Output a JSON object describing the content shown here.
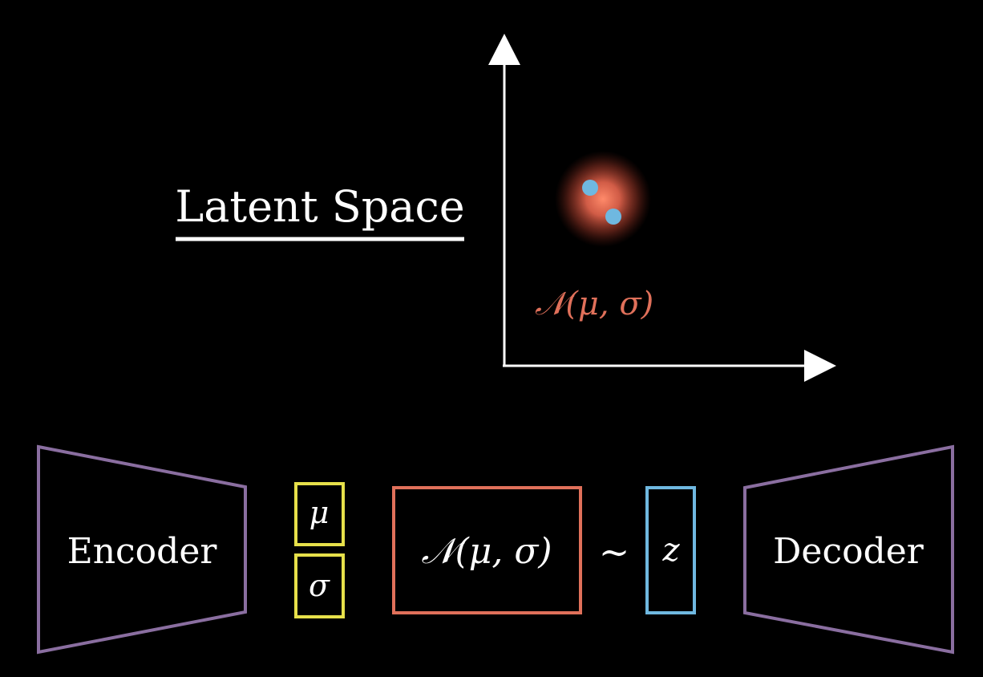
{
  "latent_space": {
    "title": "Latent Space",
    "distribution_label": "𝒩(μ, σ)",
    "colors": {
      "axes": "#ffffff",
      "distribution": "#e0705a",
      "points": "#6fb8e0"
    }
  },
  "pipeline": {
    "encoder_label": "Encoder",
    "mu_label": "μ",
    "sigma_label": "σ",
    "distribution_label": "𝒩(μ, σ)",
    "tilde_label": "∼",
    "z_label": "z",
    "decoder_label": "Decoder",
    "colors": {
      "encoder": "#8a6ea0",
      "decoder": "#8a6ea0",
      "params": "#e6e04a",
      "distribution": "#e0705a",
      "z": "#6fb8e0",
      "text": "#ffffff"
    }
  }
}
